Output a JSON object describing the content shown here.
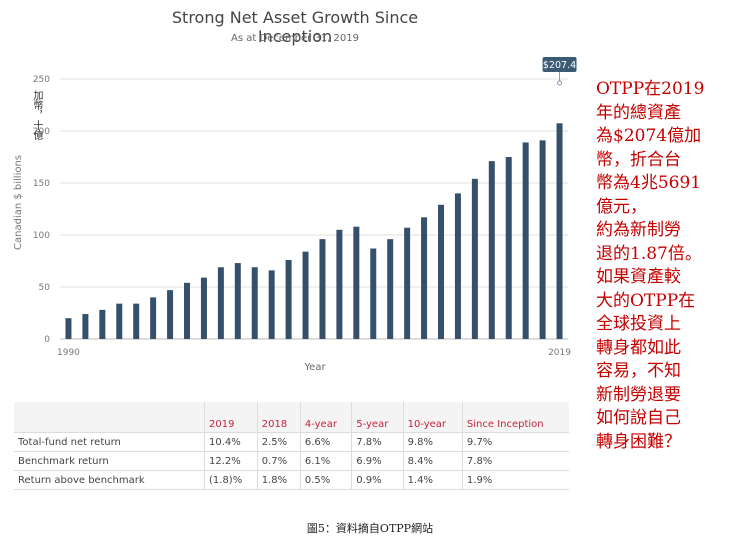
{
  "chart_data": {
    "type": "bar",
    "title": "Strong Net Asset Growth Since Inception",
    "subtitle": "As at December 31, 2019",
    "xlabel": "Year",
    "ylabel": "Canadian $ billions",
    "ylabel_zh": "加幣，十億",
    "ylim": [
      0,
      250
    ],
    "yticks": [
      0,
      50,
      100,
      150,
      200,
      250
    ],
    "xtick_labels": [
      "1990",
      "2019"
    ],
    "grid": true,
    "categories": [
      "1990",
      "1991",
      "1992",
      "1993",
      "1994",
      "1995",
      "1996",
      "1997",
      "1998",
      "1999",
      "2000",
      "2001",
      "2002",
      "2003",
      "2004",
      "2005",
      "2006",
      "2007",
      "2008",
      "2009",
      "2010",
      "2011",
      "2012",
      "2013",
      "2014",
      "2015",
      "2016",
      "2017",
      "2018",
      "2019"
    ],
    "values": [
      20,
      24,
      28,
      34,
      34,
      40,
      47,
      54,
      59,
      69,
      73,
      69,
      66,
      76,
      84,
      96,
      105,
      108,
      87,
      96,
      107,
      117,
      129,
      140,
      154,
      171,
      175,
      189,
      191,
      207.4
    ],
    "bar_color": "#35506b",
    "callout": "$207.4",
    "callout_color": "#3b5a75"
  },
  "returns_table": {
    "headers": [
      "2019",
      "2018",
      "4-year",
      "5-year",
      "10-year",
      "Since Inception"
    ],
    "rows": [
      {
        "label": "Total-fund net return",
        "values": [
          "10.4%",
          "2.5%",
          "6.6%",
          "7.8%",
          "9.8%",
          "9.7%"
        ]
      },
      {
        "label": "Benchmark return",
        "values": [
          "12.2%",
          "0.7%",
          "6.1%",
          "6.9%",
          "8.4%",
          "7.8%"
        ]
      },
      {
        "label": "Return above benchmark",
        "values": [
          "(1.8)%",
          "1.8%",
          "0.5%",
          "0.9%",
          "1.4%",
          "1.9%"
        ]
      }
    ],
    "header_color": "#c0253f"
  },
  "note": {
    "color": "#c40000",
    "lines": [
      "OTPP在2019",
      "年的總資產",
      "為$2074億加",
      "幣，折合台",
      "幣為4兆5691",
      "億元，",
      "約為新制勞",
      "退的1.87倍。",
      "如果資產較",
      "大的OTPP在",
      "全球投資上",
      "轉身都如此",
      "容易，不知",
      "新制勞退要",
      "如何說自己",
      "轉身困難？"
    ]
  },
  "caption": "圖5：資料摘自OTPP網站"
}
